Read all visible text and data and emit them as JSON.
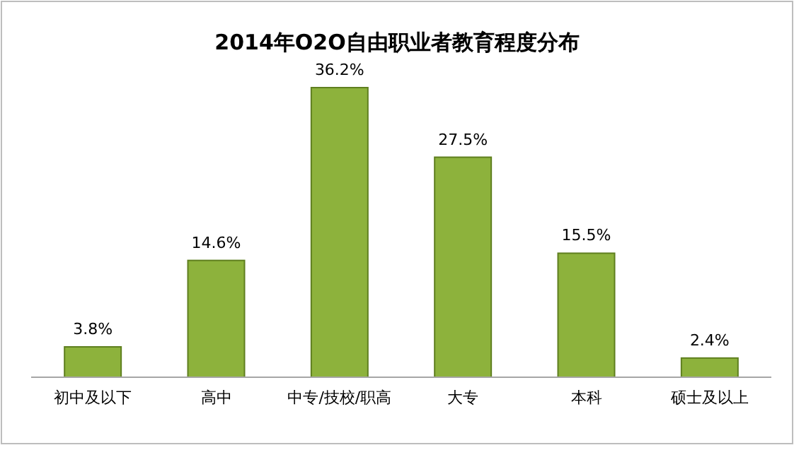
{
  "chart_data": {
    "type": "bar",
    "title": "2014年O2O自由职业者教育程度分布",
    "categories": [
      "初中及以下",
      "高中",
      "中专/技校/职高",
      "大专",
      "本科",
      "硕士及以上"
    ],
    "values": [
      3.8,
      14.6,
      36.2,
      27.5,
      15.5,
      2.4
    ],
    "value_labels": [
      "3.8%",
      "14.6%",
      "36.2%",
      "27.5%",
      "15.5%",
      "2.4%"
    ],
    "color": "#8db23c"
  }
}
